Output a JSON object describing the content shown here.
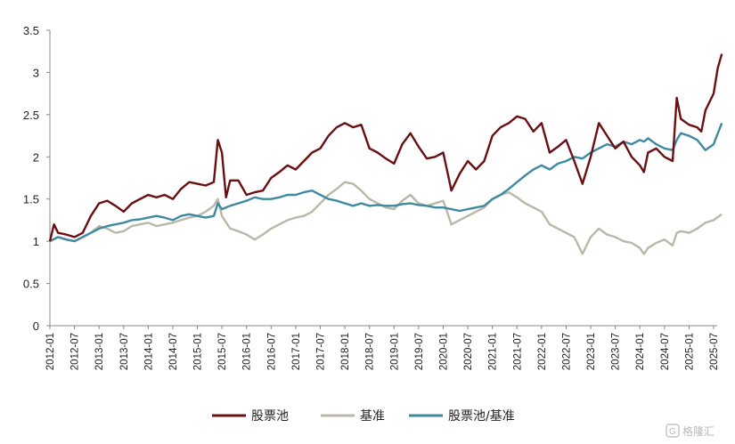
{
  "chart_data": {
    "type": "line",
    "title": "",
    "xlabel": "",
    "ylabel": "",
    "ylim": [
      0,
      3.5
    ],
    "yticks": [
      "0",
      "0.5",
      "1",
      "1.5",
      "2",
      "2.5",
      "3",
      "3.5"
    ],
    "xticks": [
      "2012-01",
      "2012-07",
      "2013-01",
      "2013-07",
      "2014-01",
      "2014-07",
      "2015-01",
      "2015-07",
      "2016-01",
      "2016-07",
      "2017-01",
      "2017-07",
      "2018-01",
      "2018-07",
      "2019-01",
      "2019-07",
      "2020-01",
      "2020-07",
      "2021-01",
      "2021-07",
      "2022-01",
      "2022-07",
      "2023-01",
      "2023-07",
      "2024-01",
      "2024-07",
      "2025-01",
      "2025-07"
    ],
    "legend_position": "bottom",
    "grid": false,
    "series": [
      {
        "name": "股票池",
        "color": "#6b0f12",
        "points": [
          [
            "2012-01",
            1.0
          ],
          [
            "2012-02",
            1.2
          ],
          [
            "2012-03",
            1.1
          ],
          [
            "2012-05",
            1.08
          ],
          [
            "2012-07",
            1.05
          ],
          [
            "2012-09",
            1.1
          ],
          [
            "2012-11",
            1.3
          ],
          [
            "2013-01",
            1.45
          ],
          [
            "2013-03",
            1.48
          ],
          [
            "2013-05",
            1.42
          ],
          [
            "2013-07",
            1.35
          ],
          [
            "2013-09",
            1.45
          ],
          [
            "2013-11",
            1.5
          ],
          [
            "2014-01",
            1.55
          ],
          [
            "2014-03",
            1.52
          ],
          [
            "2014-05",
            1.55
          ],
          [
            "2014-07",
            1.5
          ],
          [
            "2014-09",
            1.62
          ],
          [
            "2014-11",
            1.7
          ],
          [
            "2015-01",
            1.68
          ],
          [
            "2015-03",
            1.66
          ],
          [
            "2015-05",
            1.7
          ],
          [
            "2015-06",
            2.2
          ],
          [
            "2015-07",
            2.05
          ],
          [
            "2015-08",
            1.52
          ],
          [
            "2015-09",
            1.72
          ],
          [
            "2015-11",
            1.72
          ],
          [
            "2016-01",
            1.55
          ],
          [
            "2016-03",
            1.58
          ],
          [
            "2016-05",
            1.6
          ],
          [
            "2016-07",
            1.75
          ],
          [
            "2016-09",
            1.82
          ],
          [
            "2016-11",
            1.9
          ],
          [
            "2017-01",
            1.85
          ],
          [
            "2017-03",
            1.95
          ],
          [
            "2017-05",
            2.05
          ],
          [
            "2017-07",
            2.1
          ],
          [
            "2017-09",
            2.25
          ],
          [
            "2017-11",
            2.35
          ],
          [
            "2018-01",
            2.4
          ],
          [
            "2018-03",
            2.35
          ],
          [
            "2018-05",
            2.38
          ],
          [
            "2018-07",
            2.1
          ],
          [
            "2018-09",
            2.05
          ],
          [
            "2018-11",
            1.98
          ],
          [
            "2019-01",
            1.92
          ],
          [
            "2019-03",
            2.15
          ],
          [
            "2019-05",
            2.28
          ],
          [
            "2019-07",
            2.12
          ],
          [
            "2019-09",
            1.98
          ],
          [
            "2019-11",
            2.0
          ],
          [
            "2020-01",
            2.05
          ],
          [
            "2020-03",
            1.6
          ],
          [
            "2020-05",
            1.8
          ],
          [
            "2020-07",
            1.95
          ],
          [
            "2020-09",
            1.85
          ],
          [
            "2020-11",
            1.95
          ],
          [
            "2021-01",
            2.25
          ],
          [
            "2021-03",
            2.35
          ],
          [
            "2021-05",
            2.4
          ],
          [
            "2021-07",
            2.48
          ],
          [
            "2021-09",
            2.45
          ],
          [
            "2021-11",
            2.3
          ],
          [
            "2022-01",
            2.4
          ],
          [
            "2022-03",
            2.05
          ],
          [
            "2022-05",
            2.12
          ],
          [
            "2022-07",
            2.2
          ],
          [
            "2022-09",
            1.95
          ],
          [
            "2022-11",
            1.68
          ],
          [
            "2023-01",
            2.0
          ],
          [
            "2023-03",
            2.4
          ],
          [
            "2023-05",
            2.25
          ],
          [
            "2023-07",
            2.1
          ],
          [
            "2023-09",
            2.18
          ],
          [
            "2023-11",
            2.0
          ],
          [
            "2024-01",
            1.9
          ],
          [
            "2024-02",
            1.82
          ],
          [
            "2024-03",
            2.05
          ],
          [
            "2024-05",
            2.1
          ],
          [
            "2024-07",
            2.0
          ],
          [
            "2024-09",
            1.95
          ],
          [
            "2024-10",
            2.7
          ],
          [
            "2024-11",
            2.45
          ],
          [
            "2025-01",
            2.38
          ],
          [
            "2025-03",
            2.35
          ],
          [
            "2025-04",
            2.3
          ],
          [
            "2025-05",
            2.55
          ],
          [
            "2025-07",
            2.75
          ],
          [
            "2025-08",
            3.05
          ],
          [
            "2025-09",
            3.22
          ]
        ]
      },
      {
        "name": "基准",
        "color": "#b9b8a8",
        "points": [
          [
            "2012-01",
            1.0
          ],
          [
            "2012-03",
            1.05
          ],
          [
            "2012-05",
            1.02
          ],
          [
            "2012-07",
            1.0
          ],
          [
            "2012-09",
            1.05
          ],
          [
            "2012-11",
            1.1
          ],
          [
            "2013-01",
            1.18
          ],
          [
            "2013-03",
            1.15
          ],
          [
            "2013-05",
            1.1
          ],
          [
            "2013-07",
            1.12
          ],
          [
            "2013-09",
            1.18
          ],
          [
            "2013-11",
            1.2
          ],
          [
            "2014-01",
            1.22
          ],
          [
            "2014-03",
            1.18
          ],
          [
            "2014-05",
            1.2
          ],
          [
            "2014-07",
            1.22
          ],
          [
            "2014-09",
            1.25
          ],
          [
            "2014-11",
            1.28
          ],
          [
            "2015-01",
            1.3
          ],
          [
            "2015-03",
            1.35
          ],
          [
            "2015-05",
            1.42
          ],
          [
            "2015-06",
            1.5
          ],
          [
            "2015-07",
            1.3
          ],
          [
            "2015-09",
            1.15
          ],
          [
            "2015-11",
            1.12
          ],
          [
            "2016-01",
            1.08
          ],
          [
            "2016-03",
            1.02
          ],
          [
            "2016-05",
            1.08
          ],
          [
            "2016-07",
            1.15
          ],
          [
            "2016-09",
            1.2
          ],
          [
            "2016-11",
            1.25
          ],
          [
            "2017-01",
            1.28
          ],
          [
            "2017-03",
            1.3
          ],
          [
            "2017-05",
            1.35
          ],
          [
            "2017-07",
            1.45
          ],
          [
            "2017-09",
            1.55
          ],
          [
            "2017-11",
            1.62
          ],
          [
            "2018-01",
            1.7
          ],
          [
            "2018-03",
            1.68
          ],
          [
            "2018-05",
            1.6
          ],
          [
            "2018-07",
            1.5
          ],
          [
            "2018-09",
            1.45
          ],
          [
            "2018-11",
            1.4
          ],
          [
            "2019-01",
            1.38
          ],
          [
            "2019-03",
            1.48
          ],
          [
            "2019-05",
            1.55
          ],
          [
            "2019-07",
            1.45
          ],
          [
            "2019-09",
            1.42
          ],
          [
            "2019-11",
            1.45
          ],
          [
            "2020-01",
            1.48
          ],
          [
            "2020-03",
            1.2
          ],
          [
            "2020-05",
            1.25
          ],
          [
            "2020-07",
            1.3
          ],
          [
            "2020-09",
            1.35
          ],
          [
            "2020-11",
            1.4
          ],
          [
            "2021-01",
            1.5
          ],
          [
            "2021-03",
            1.55
          ],
          [
            "2021-05",
            1.58
          ],
          [
            "2021-07",
            1.52
          ],
          [
            "2021-09",
            1.45
          ],
          [
            "2021-11",
            1.4
          ],
          [
            "2022-01",
            1.35
          ],
          [
            "2022-03",
            1.2
          ],
          [
            "2022-05",
            1.15
          ],
          [
            "2022-07",
            1.1
          ],
          [
            "2022-09",
            1.05
          ],
          [
            "2022-11",
            0.85
          ],
          [
            "2023-01",
            1.05
          ],
          [
            "2023-03",
            1.15
          ],
          [
            "2023-05",
            1.08
          ],
          [
            "2023-07",
            1.05
          ],
          [
            "2023-09",
            1.0
          ],
          [
            "2023-11",
            0.98
          ],
          [
            "2024-01",
            0.92
          ],
          [
            "2024-02",
            0.85
          ],
          [
            "2024-03",
            0.92
          ],
          [
            "2024-05",
            0.98
          ],
          [
            "2024-07",
            1.02
          ],
          [
            "2024-09",
            0.95
          ],
          [
            "2024-10",
            1.1
          ],
          [
            "2024-11",
            1.12
          ],
          [
            "2025-01",
            1.1
          ],
          [
            "2025-03",
            1.15
          ],
          [
            "2025-05",
            1.22
          ],
          [
            "2025-07",
            1.25
          ],
          [
            "2025-09",
            1.32
          ]
        ]
      },
      {
        "name": "股票池/基准",
        "color": "#3f8aa0",
        "points": [
          [
            "2012-01",
            1.0
          ],
          [
            "2012-03",
            1.05
          ],
          [
            "2012-05",
            1.02
          ],
          [
            "2012-07",
            1.0
          ],
          [
            "2012-09",
            1.05
          ],
          [
            "2012-11",
            1.1
          ],
          [
            "2013-01",
            1.15
          ],
          [
            "2013-03",
            1.18
          ],
          [
            "2013-05",
            1.2
          ],
          [
            "2013-07",
            1.22
          ],
          [
            "2013-09",
            1.25
          ],
          [
            "2013-11",
            1.26
          ],
          [
            "2014-01",
            1.28
          ],
          [
            "2014-03",
            1.3
          ],
          [
            "2014-05",
            1.28
          ],
          [
            "2014-07",
            1.25
          ],
          [
            "2014-09",
            1.3
          ],
          [
            "2014-11",
            1.32
          ],
          [
            "2015-01",
            1.3
          ],
          [
            "2015-03",
            1.28
          ],
          [
            "2015-05",
            1.3
          ],
          [
            "2015-06",
            1.45
          ],
          [
            "2015-07",
            1.38
          ],
          [
            "2015-09",
            1.42
          ],
          [
            "2015-11",
            1.45
          ],
          [
            "2016-01",
            1.48
          ],
          [
            "2016-03",
            1.52
          ],
          [
            "2016-05",
            1.5
          ],
          [
            "2016-07",
            1.5
          ],
          [
            "2016-09",
            1.52
          ],
          [
            "2016-11",
            1.55
          ],
          [
            "2017-01",
            1.55
          ],
          [
            "2017-03",
            1.58
          ],
          [
            "2017-05",
            1.6
          ],
          [
            "2017-07",
            1.55
          ],
          [
            "2017-09",
            1.5
          ],
          [
            "2017-11",
            1.48
          ],
          [
            "2018-01",
            1.45
          ],
          [
            "2018-03",
            1.42
          ],
          [
            "2018-05",
            1.45
          ],
          [
            "2018-07",
            1.42
          ],
          [
            "2018-09",
            1.43
          ],
          [
            "2018-11",
            1.42
          ],
          [
            "2019-01",
            1.42
          ],
          [
            "2019-03",
            1.44
          ],
          [
            "2019-05",
            1.45
          ],
          [
            "2019-07",
            1.43
          ],
          [
            "2019-09",
            1.42
          ],
          [
            "2019-11",
            1.4
          ],
          [
            "2020-01",
            1.4
          ],
          [
            "2020-03",
            1.38
          ],
          [
            "2020-05",
            1.36
          ],
          [
            "2020-07",
            1.38
          ],
          [
            "2020-09",
            1.4
          ],
          [
            "2020-11",
            1.42
          ],
          [
            "2021-01",
            1.5
          ],
          [
            "2021-03",
            1.55
          ],
          [
            "2021-05",
            1.62
          ],
          [
            "2021-07",
            1.7
          ],
          [
            "2021-09",
            1.78
          ],
          [
            "2021-11",
            1.85
          ],
          [
            "2022-01",
            1.9
          ],
          [
            "2022-03",
            1.85
          ],
          [
            "2022-05",
            1.92
          ],
          [
            "2022-07",
            1.95
          ],
          [
            "2022-09",
            2.0
          ],
          [
            "2022-11",
            1.98
          ],
          [
            "2023-01",
            2.05
          ],
          [
            "2023-03",
            2.1
          ],
          [
            "2023-05",
            2.15
          ],
          [
            "2023-07",
            2.12
          ],
          [
            "2023-09",
            2.18
          ],
          [
            "2023-11",
            2.15
          ],
          [
            "2024-01",
            2.2
          ],
          [
            "2024-02",
            2.18
          ],
          [
            "2024-03",
            2.22
          ],
          [
            "2024-05",
            2.15
          ],
          [
            "2024-07",
            2.1
          ],
          [
            "2024-09",
            2.08
          ],
          [
            "2024-10",
            2.2
          ],
          [
            "2024-11",
            2.28
          ],
          [
            "2025-01",
            2.25
          ],
          [
            "2025-03",
            2.2
          ],
          [
            "2025-05",
            2.08
          ],
          [
            "2025-07",
            2.15
          ],
          [
            "2025-09",
            2.4
          ]
        ]
      }
    ]
  },
  "watermark": {
    "text": "格隆汇",
    "icon": "glh-logo-icon"
  }
}
